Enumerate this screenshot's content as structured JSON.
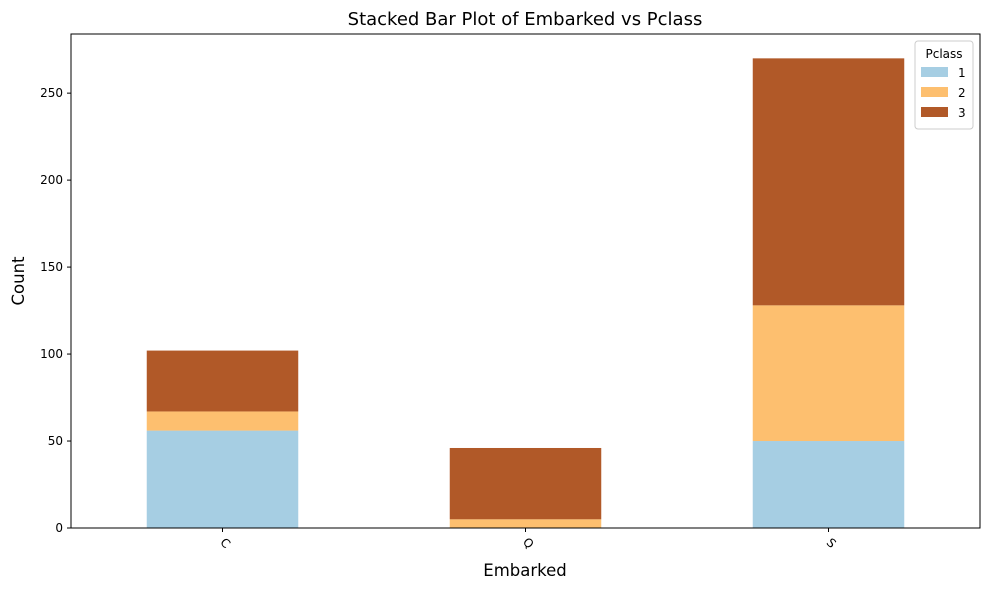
{
  "chart_data": {
    "type": "bar",
    "stacked": true,
    "title": "Stacked Bar Plot of Embarked vs Pclass",
    "xlabel": "Embarked",
    "ylabel": "Count",
    "categories": [
      "C",
      "Q",
      "S"
    ],
    "series": [
      {
        "name": "1",
        "color": "#a6cee3",
        "values": [
          56,
          0,
          50
        ]
      },
      {
        "name": "2",
        "color": "#fdbf6f",
        "values": [
          11,
          5,
          78
        ]
      },
      {
        "name": "3",
        "color": "#b15928",
        "values": [
          35,
          41,
          142
        ]
      }
    ],
    "ylim": [
      0,
      284
    ],
    "yticks": [
      0,
      50,
      100,
      150,
      200,
      250
    ],
    "grid": false,
    "legend": {
      "title": "Pclass",
      "placement": "top-right"
    }
  }
}
